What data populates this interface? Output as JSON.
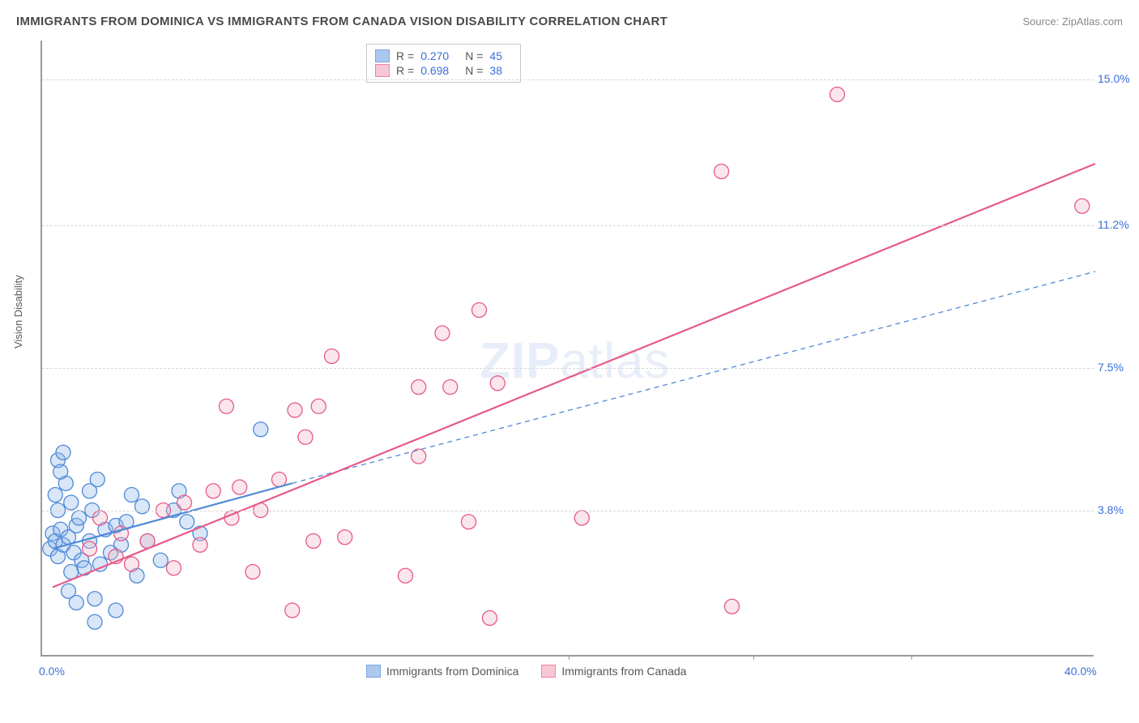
{
  "title": "IMMIGRANTS FROM DOMINICA VS IMMIGRANTS FROM CANADA VISION DISABILITY CORRELATION CHART",
  "source": "Source: ZipAtlas.com",
  "ylabel": "Vision Disability",
  "watermark_bold": "ZIP",
  "watermark_light": "atlas",
  "chart": {
    "type": "scatter-correlation",
    "background_color": "#ffffff",
    "grid_color": "#d8d8d8",
    "axis_color": "#9a9a9a",
    "tick_label_color": "#3a6fd8",
    "axis_label_color": "#5a5a5a",
    "tick_fontsize": 14,
    "label_fontsize": 13,
    "title_fontsize": 15,
    "title_color": "#4a4a4a",
    "xlim": [
      0,
      40
    ],
    "ylim": [
      0,
      16
    ],
    "xticks": [
      0,
      40
    ],
    "xtick_labels": [
      "0.0%",
      "40.0%"
    ],
    "xtick_minor": [
      20,
      27,
      33
    ],
    "yticks": [
      3.8,
      7.5,
      11.2,
      15.0
    ],
    "ytick_labels": [
      "3.8%",
      "7.5%",
      "11.2%",
      "15.0%"
    ],
    "marker_radius": 9,
    "marker_fill_opacity": 0.35,
    "marker_stroke_width": 1.3,
    "line_width_solid": 2.2,
    "line_width_dashed": 1.3,
    "dash_pattern": "6,5",
    "series": [
      {
        "name": "Immigrants from Dominica",
        "color_fill": "#8fb6ea",
        "color_stroke": "#4f89d6",
        "R": "0.270",
        "N": "45",
        "trend_solid": {
          "x1": 0.4,
          "y1": 2.8,
          "x2": 9.5,
          "y2": 4.5
        },
        "trend_dashed": {
          "x1": 9.5,
          "y1": 4.5,
          "x2": 40,
          "y2": 10.0
        },
        "points": [
          [
            0.3,
            2.8
          ],
          [
            0.4,
            3.2
          ],
          [
            0.5,
            3.0
          ],
          [
            0.6,
            2.6
          ],
          [
            0.7,
            3.3
          ],
          [
            0.8,
            2.9
          ],
          [
            0.5,
            4.2
          ],
          [
            0.9,
            4.5
          ],
          [
            1.1,
            4.0
          ],
          [
            1.0,
            3.1
          ],
          [
            1.2,
            2.7
          ],
          [
            0.6,
            5.1
          ],
          [
            0.8,
            5.3
          ],
          [
            1.3,
            3.4
          ],
          [
            1.5,
            2.5
          ],
          [
            1.6,
            2.3
          ],
          [
            1.4,
            3.6
          ],
          [
            1.8,
            3.0
          ],
          [
            2.0,
            1.5
          ],
          [
            2.0,
            0.9
          ],
          [
            2.2,
            2.4
          ],
          [
            2.4,
            3.3
          ],
          [
            2.6,
            2.7
          ],
          [
            2.8,
            1.2
          ],
          [
            2.8,
            3.4
          ],
          [
            3.0,
            2.9
          ],
          [
            3.2,
            3.5
          ],
          [
            3.6,
            2.1
          ],
          [
            3.8,
            3.9
          ],
          [
            4.0,
            3.0
          ],
          [
            4.5,
            2.5
          ],
          [
            5.0,
            3.8
          ],
          [
            5.5,
            3.5
          ],
          [
            6.0,
            3.2
          ],
          [
            1.0,
            1.7
          ],
          [
            1.3,
            1.4
          ],
          [
            0.6,
            3.8
          ],
          [
            0.7,
            4.8
          ],
          [
            1.8,
            4.3
          ],
          [
            2.1,
            4.6
          ],
          [
            3.4,
            4.2
          ],
          [
            5.2,
            4.3
          ],
          [
            8.3,
            5.9
          ],
          [
            1.9,
            3.8
          ],
          [
            1.1,
            2.2
          ]
        ]
      },
      {
        "name": "Immigrants from Canada",
        "color_fill": "#f2b6c6",
        "color_stroke": "#e75a8a",
        "R": "0.698",
        "N": "38",
        "trend_solid": {
          "x1": 0.4,
          "y1": 1.8,
          "x2": 40,
          "y2": 12.8
        },
        "trend_dashed": null,
        "points": [
          [
            1.8,
            2.8
          ],
          [
            2.2,
            3.6
          ],
          [
            2.8,
            2.6
          ],
          [
            3.0,
            3.2
          ],
          [
            3.4,
            2.4
          ],
          [
            4.0,
            3.0
          ],
          [
            4.6,
            3.8
          ],
          [
            5.0,
            2.3
          ],
          [
            5.4,
            4.0
          ],
          [
            6.0,
            2.9
          ],
          [
            6.5,
            4.3
          ],
          [
            7.0,
            6.5
          ],
          [
            7.2,
            3.6
          ],
          [
            7.5,
            4.4
          ],
          [
            8.0,
            2.2
          ],
          [
            8.3,
            3.8
          ],
          [
            9.0,
            4.6
          ],
          [
            9.5,
            1.2
          ],
          [
            9.6,
            6.4
          ],
          [
            10.0,
            5.7
          ],
          [
            10.3,
            3.0
          ],
          [
            10.5,
            6.5
          ],
          [
            11.0,
            7.8
          ],
          [
            11.5,
            3.1
          ],
          [
            13.8,
            2.1
          ],
          [
            14.3,
            5.2
          ],
          [
            14.3,
            7.0
          ],
          [
            15.2,
            8.4
          ],
          [
            15.5,
            7.0
          ],
          [
            16.2,
            3.5
          ],
          [
            16.6,
            9.0
          ],
          [
            17.0,
            1.0
          ],
          [
            17.3,
            7.1
          ],
          [
            20.5,
            3.6
          ],
          [
            25.8,
            12.6
          ],
          [
            26.2,
            1.3
          ],
          [
            30.2,
            14.6
          ],
          [
            39.5,
            11.7
          ]
        ]
      }
    ],
    "legend_top": {
      "r_label": "R =",
      "n_label": "N ="
    }
  }
}
